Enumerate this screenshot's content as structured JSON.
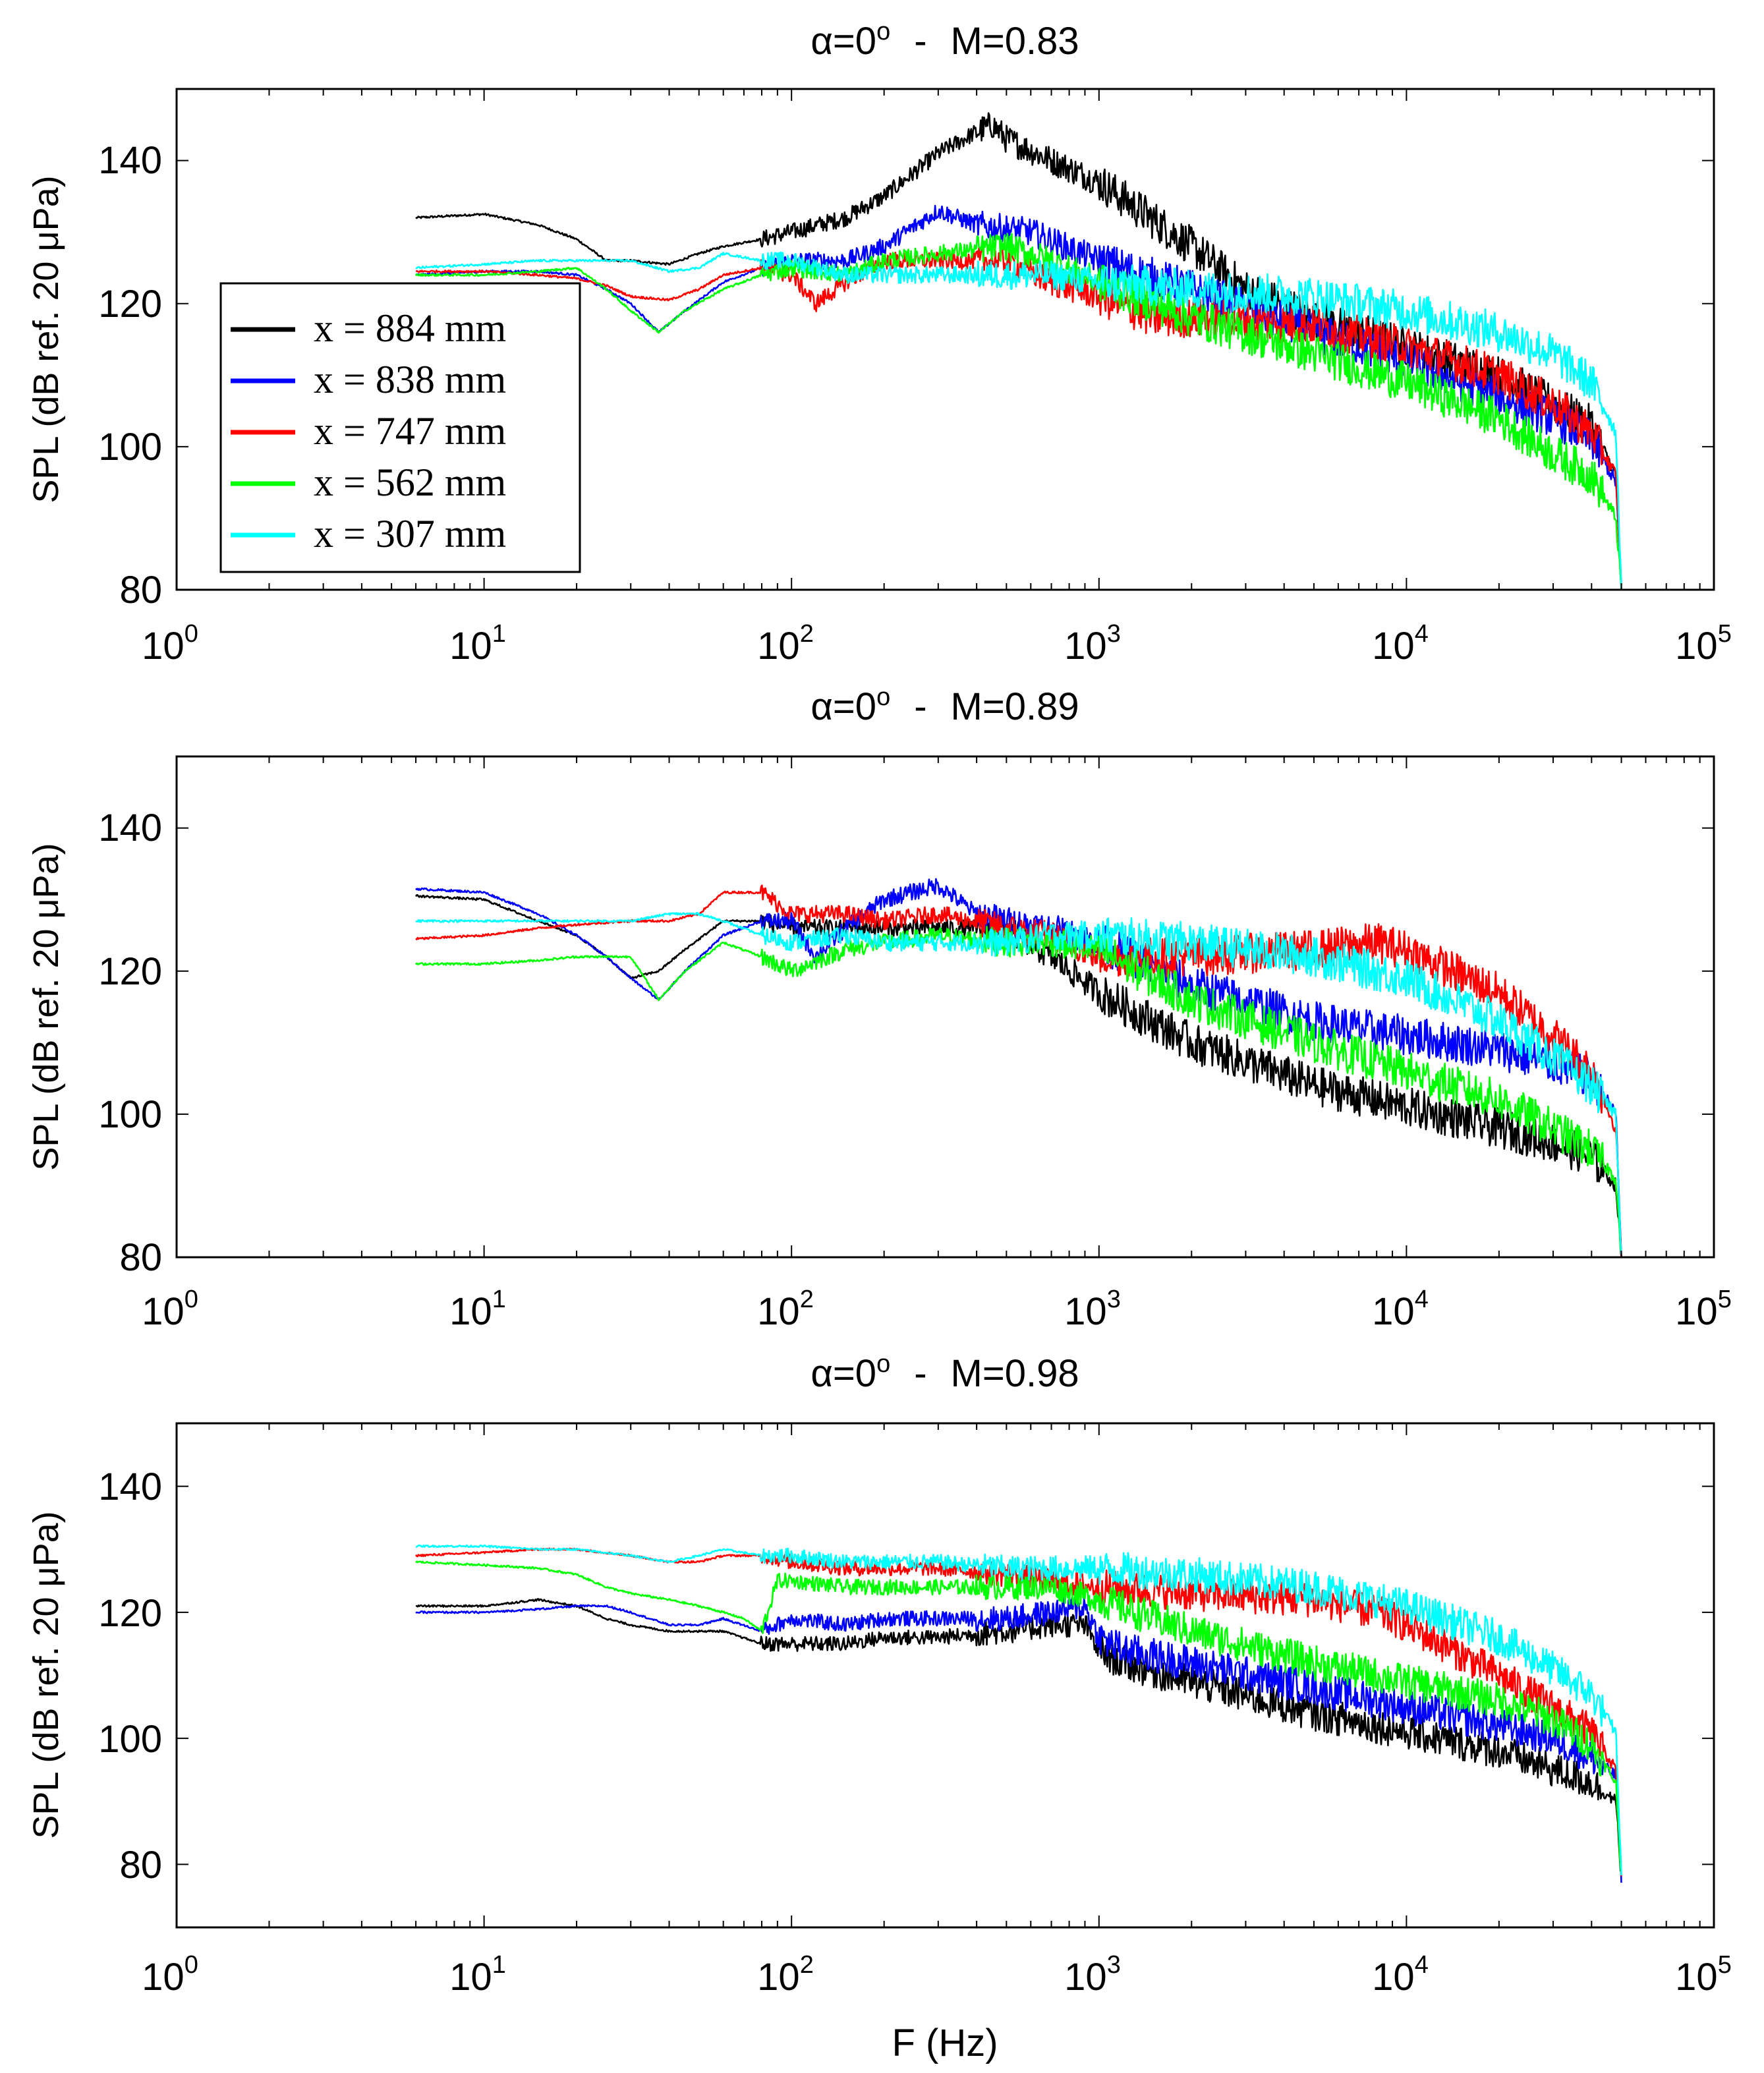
{
  "chart_data": [
    {
      "type": "line",
      "title": "α=0° - M=0.83",
      "title_alpha": "α=0",
      "title_deg": "o",
      "title_sep": "-",
      "title_mach": "M=0.83",
      "xlabel": "",
      "ylabel": "SPL (dB ref. 20 μPa)",
      "xscale": "log",
      "xlim": [
        1,
        100000
      ],
      "ylim": [
        80,
        150
      ],
      "xticks": [
        {
          "base": "10",
          "exp": "0"
        },
        {
          "base": "10",
          "exp": "1"
        },
        {
          "base": "10",
          "exp": "2"
        },
        {
          "base": "10",
          "exp": "3"
        },
        {
          "base": "10",
          "exp": "4"
        },
        {
          "base": "10",
          "exp": "5"
        }
      ],
      "yticks": [
        "80",
        "100",
        "120",
        "140"
      ],
      "legend_position": "left",
      "legend": [
        "x = 884 mm",
        "x = 838 mm",
        "x = 747 mm",
        "x = 562 mm",
        "x = 307 mm"
      ],
      "series": [
        {
          "name": "x = 884 mm",
          "color": "#000000",
          "x": [
            6,
            10,
            15,
            20,
            25,
            30,
            40,
            50,
            60,
            80,
            100,
            150,
            200,
            300,
            400,
            450,
            500,
            700,
            1000,
            2000,
            3000,
            5000,
            10000,
            20000,
            30000,
            40000,
            48000,
            50000
          ],
          "y": [
            132,
            132.5,
            131,
            129,
            126,
            126,
            125.5,
            127,
            128,
            129,
            130,
            132,
            135,
            141,
            144,
            145,
            143,
            140,
            137,
            128,
            122,
            118,
            114,
            110,
            106,
            103,
            96,
            80
          ]
        },
        {
          "name": "x = 838 mm",
          "color": "#0000ff",
          "x": [
            6,
            10,
            15,
            20,
            25,
            30,
            37,
            45,
            60,
            80,
            100,
            150,
            200,
            300,
            400,
            600,
            1000,
            2000,
            5000,
            10000,
            20000,
            30000,
            40000,
            48000,
            50000
          ],
          "y": [
            124,
            124.5,
            124.5,
            124,
            122,
            120,
            116,
            119,
            123,
            125,
            126,
            126,
            128,
            133,
            131,
            130,
            126,
            122,
            116,
            112,
            107,
            104,
            101,
            95,
            80
          ]
        },
        {
          "name": "x = 747 mm",
          "color": "#ff0000",
          "x": [
            6,
            10,
            15,
            20,
            25,
            30,
            40,
            50,
            60,
            80,
            100,
            120,
            150,
            200,
            300,
            500,
            700,
            1000,
            1500,
            2000,
            5000,
            10000,
            20000,
            30000,
            40000,
            48000,
            50000
          ],
          "y": [
            124.5,
            124.5,
            124,
            123.5,
            122.5,
            121,
            120.5,
            122,
            124,
            125,
            124,
            120,
            123,
            126,
            126,
            126,
            123,
            121,
            118,
            118,
            117,
            114,
            110,
            106,
            102,
            96,
            80
          ]
        },
        {
          "name": "x = 562 mm",
          "color": "#00ff00",
          "x": [
            6,
            10,
            15,
            20,
            25,
            30,
            37,
            45,
            60,
            80,
            100,
            150,
            200,
            300,
            500,
            700,
            1000,
            2000,
            5000,
            10000,
            20000,
            30000,
            40000,
            48000,
            50000
          ],
          "y": [
            124,
            124,
            124.5,
            125,
            122,
            119,
            116,
            119,
            122,
            124,
            125,
            124,
            126,
            127,
            128,
            126,
            123,
            118,
            113,
            109,
            104,
            99,
            96,
            90,
            80
          ]
        },
        {
          "name": "x = 307 mm",
          "color": "#00ffff",
          "x": [
            6,
            10,
            15,
            20,
            30,
            40,
            50,
            60,
            80,
            100,
            150,
            200,
            300,
            500,
            700,
            1000,
            2000,
            5000,
            10000,
            20000,
            30000,
            40000,
            48000,
            50000
          ],
          "y": [
            125,
            125.5,
            126,
            126,
            126,
            124.5,
            125,
            127,
            126,
            126,
            124,
            124,
            124,
            124,
            124,
            123,
            122,
            121,
            119,
            116,
            113,
            109,
            102,
            80
          ]
        }
      ]
    },
    {
      "type": "line",
      "title": "α=0° - M=0.89",
      "title_alpha": "α=0",
      "title_deg": "o",
      "title_sep": "-",
      "title_mach": "M=0.89",
      "xlabel": "",
      "ylabel": "SPL (dB ref. 20 μPa)",
      "xscale": "log",
      "xlim": [
        1,
        100000
      ],
      "ylim": [
        80,
        150
      ],
      "xticks": [
        {
          "base": "10",
          "exp": "0"
        },
        {
          "base": "10",
          "exp": "1"
        },
        {
          "base": "10",
          "exp": "2"
        },
        {
          "base": "10",
          "exp": "3"
        },
        {
          "base": "10",
          "exp": "4"
        },
        {
          "base": "10",
          "exp": "5"
        }
      ],
      "yticks": [
        "80",
        "100",
        "120",
        "140"
      ],
      "series": [
        {
          "name": "x = 884 mm",
          "color": "#000000",
          "x": [
            6,
            10,
            15,
            20,
            25,
            30,
            37,
            45,
            60,
            80,
            100,
            150,
            200,
            300,
            500,
            700,
            1000,
            2000,
            5000,
            10000,
            20000,
            30000,
            40000,
            48000,
            50000
          ],
          "y": [
            130.5,
            130,
            127,
            125,
            122,
            119,
            120,
            123,
            127,
            127,
            126,
            126,
            126,
            126,
            126,
            122,
            117,
            110,
            104,
            101,
            98,
            96,
            94,
            90,
            80
          ]
        },
        {
          "name": "x = 838 mm",
          "color": "#0000ff",
          "x": [
            6,
            10,
            15,
            20,
            25,
            30,
            37,
            45,
            60,
            80,
            100,
            120,
            150,
            200,
            300,
            400,
            500,
            700,
            1000,
            2000,
            5000,
            10000,
            20000,
            30000,
            40000,
            48000,
            50000
          ],
          "y": [
            131.5,
            131,
            128,
            125,
            122,
            119,
            116,
            120,
            125,
            127,
            127,
            122,
            126,
            130,
            132,
            128,
            127,
            126,
            124,
            118,
            113,
            111,
            109,
            107,
            105,
            100,
            80
          ]
        },
        {
          "name": "x = 747 mm",
          "color": "#ff0000",
          "x": [
            6,
            10,
            15,
            20,
            30,
            40,
            50,
            60,
            80,
            100,
            150,
            200,
            300,
            500,
            700,
            1000,
            2000,
            5000,
            8000,
            10000,
            20000,
            30000,
            40000,
            48000,
            50000
          ],
          "y": [
            124.5,
            125,
            126,
            126.5,
            127,
            127,
            128,
            131,
            131,
            128,
            128,
            127,
            128,
            126,
            125,
            122,
            122,
            123,
            124,
            123,
            117,
            111,
            106,
            98,
            80
          ]
        },
        {
          "name": "x = 562 mm",
          "color": "#00ff00",
          "x": [
            6,
            10,
            15,
            20,
            30,
            37,
            45,
            60,
            80,
            100,
            150,
            200,
            300,
            500,
            700,
            1000,
            2000,
            5000,
            10000,
            20000,
            30000,
            40000,
            48000,
            50000
          ],
          "y": [
            121,
            121,
            121.5,
            122,
            122,
            116,
            120,
            124,
            122,
            120,
            123,
            124,
            125,
            124,
            124,
            123,
            116,
            110,
            106,
            102,
            98,
            95,
            91,
            80
          ]
        },
        {
          "name": "x = 307 mm",
          "color": "#00ffff",
          "x": [
            6,
            10,
            15,
            20,
            30,
            40,
            50,
            60,
            80,
            100,
            150,
            200,
            300,
            500,
            700,
            1000,
            2000,
            5000,
            10000,
            20000,
            30000,
            40000,
            48000,
            50000
          ],
          "y": [
            127,
            127,
            127,
            127,
            127,
            128,
            128,
            127,
            125,
            124,
            125,
            124,
            124,
            124,
            125,
            125,
            124,
            122,
            119,
            113,
            108,
            104,
            100,
            80
          ]
        }
      ]
    },
    {
      "type": "line",
      "title": "α=0° - M=0.98",
      "title_alpha": "α=0",
      "title_deg": "o",
      "title_sep": "-",
      "title_mach": "M=0.98",
      "xlabel": "F (Hz)",
      "ylabel": "SPL (dB ref. 20 μPa)",
      "xscale": "log",
      "xlim": [
        1,
        100000
      ],
      "ylim": [
        70,
        150
      ],
      "xticks": [
        {
          "base": "10",
          "exp": "0"
        },
        {
          "base": "10",
          "exp": "1"
        },
        {
          "base": "10",
          "exp": "2"
        },
        {
          "base": "10",
          "exp": "3"
        },
        {
          "base": "10",
          "exp": "4"
        },
        {
          "base": "10",
          "exp": "5"
        }
      ],
      "yticks": [
        "80",
        "100",
        "120",
        "140"
      ],
      "series": [
        {
          "name": "x = 884 mm",
          "color": "#000000",
          "x": [
            6,
            10,
            15,
            20,
            25,
            30,
            40,
            50,
            60,
            80,
            100,
            150,
            200,
            300,
            500,
            700,
            900,
            1000,
            1200,
            2000,
            5000,
            10000,
            20000,
            30000,
            40000,
            48000,
            50000
          ],
          "y": [
            121,
            121,
            122,
            121,
            119,
            118,
            117,
            117,
            117,
            115,
            115,
            115,
            116,
            116,
            117,
            118,
            118,
            114,
            112,
            109,
            104,
            101,
            98,
            95,
            93,
            90,
            78
          ]
        },
        {
          "name": "x = 838 mm",
          "color": "#0000ff",
          "x": [
            6,
            10,
            15,
            20,
            25,
            30,
            40,
            50,
            60,
            80,
            100,
            150,
            200,
            300,
            500,
            700,
            900,
            1000,
            1200,
            2000,
            5000,
            10000,
            20000,
            30000,
            40000,
            48000,
            50000
          ],
          "y": [
            120,
            120,
            120.5,
            121,
            121,
            120,
            118,
            118,
            119,
            117,
            119,
            118,
            119,
            119,
            119,
            120,
            121,
            116,
            114,
            112,
            108,
            105,
            102,
            100,
            97,
            94,
            78
          ]
        },
        {
          "name": "x = 747 mm",
          "color": "#ff0000",
          "x": [
            6,
            10,
            15,
            20,
            30,
            40,
            50,
            60,
            80,
            100,
            150,
            200,
            300,
            500,
            700,
            1000,
            2000,
            5000,
            8000,
            10000,
            20000,
            30000,
            40000,
            48000,
            50000
          ],
          "y": [
            129,
            129.5,
            130,
            130,
            129,
            128,
            128,
            129,
            129,
            128,
            127,
            127,
            127,
            126,
            125,
            124,
            123,
            122,
            120,
            118,
            110,
            105,
            101,
            95,
            78
          ]
        },
        {
          "name": "x = 562 mm",
          "color": "#00ff00",
          "x": [
            6,
            10,
            15,
            20,
            25,
            30,
            40,
            50,
            60,
            70,
            80,
            90,
            100,
            150,
            200,
            300,
            500,
            700,
            1000,
            2000,
            5000,
            10000,
            20000,
            30000,
            40000,
            48000,
            50000
          ],
          "y": [
            128,
            127.5,
            127,
            126,
            124,
            123,
            122,
            121,
            120,
            119,
            117,
            125,
            125,
            124,
            124,
            124,
            124,
            124,
            122,
            117,
            112,
            109,
            106,
            103,
            99,
            93,
            78
          ]
        },
        {
          "name": "x = 307 mm",
          "color": "#00ffff",
          "x": [
            6,
            10,
            15,
            20,
            30,
            40,
            50,
            60,
            80,
            100,
            150,
            200,
            300,
            500,
            700,
            1000,
            2000,
            5000,
            10000,
            20000,
            30000,
            40000,
            48000,
            50000
          ],
          "y": [
            130.5,
            130.5,
            130,
            130,
            129,
            128,
            129,
            130,
            129,
            129,
            128,
            128,
            128,
            127,
            127,
            127,
            126,
            124,
            121,
            116,
            111,
            107,
            101,
            78
          ]
        }
      ]
    }
  ]
}
